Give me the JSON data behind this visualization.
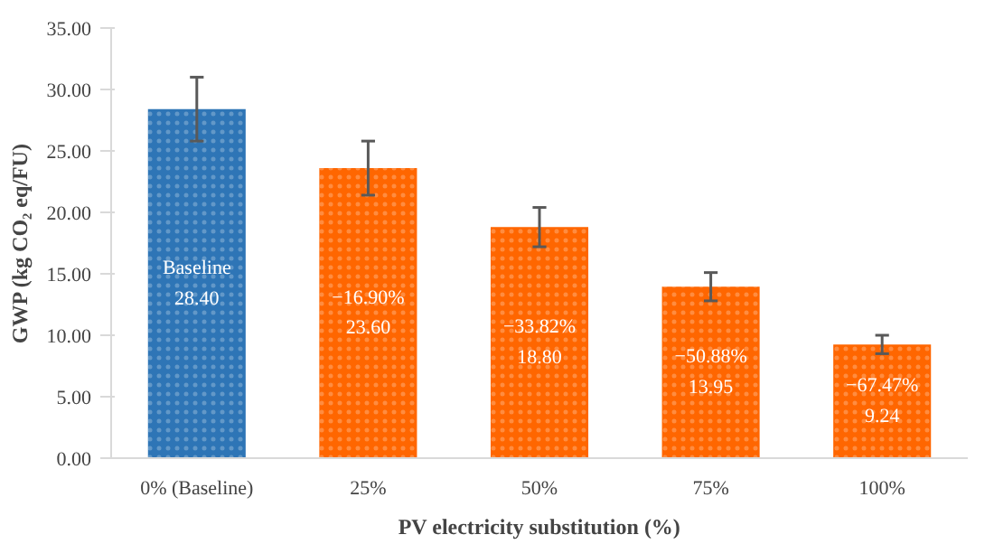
{
  "chart_data": {
    "type": "bar",
    "xlabel": "PV electricity substitution (%)",
    "ylabel": "GWP (kg CO₂ eq/FU)",
    "categories": [
      "0% (Baseline)",
      "25%",
      "50%",
      "75%",
      "100%"
    ],
    "values": [
      28.4,
      23.6,
      18.8,
      13.95,
      9.24
    ],
    "colors": [
      "#2e75b6",
      "#ff6600",
      "#ff6600",
      "#ff6600",
      "#ff6600"
    ],
    "errors": [
      [
        25.8,
        31.0
      ],
      [
        21.4,
        25.8
      ],
      [
        17.2,
        20.4
      ],
      [
        12.8,
        15.1
      ],
      [
        8.5,
        10.0
      ]
    ],
    "value_labels": [
      "Baseline\n28.40",
      "−16.90%\n23.60",
      "−33.82%\n18.80",
      "−50.88%\n13.95",
      "−67.47%\n9.24"
    ],
    "ylim": [
      0,
      35
    ],
    "yticks": [
      {
        "value": 0,
        "label": "0.00"
      },
      {
        "value": 5,
        "label": "5.00"
      },
      {
        "value": 10,
        "label": "10.00"
      },
      {
        "value": 15,
        "label": "15.00"
      },
      {
        "value": 20,
        "label": "20.00"
      },
      {
        "value": 25,
        "label": "25.00"
      },
      {
        "value": 30,
        "label": "30.00"
      },
      {
        "value": 35,
        "label": "35.00"
      }
    ],
    "grid": false
  }
}
